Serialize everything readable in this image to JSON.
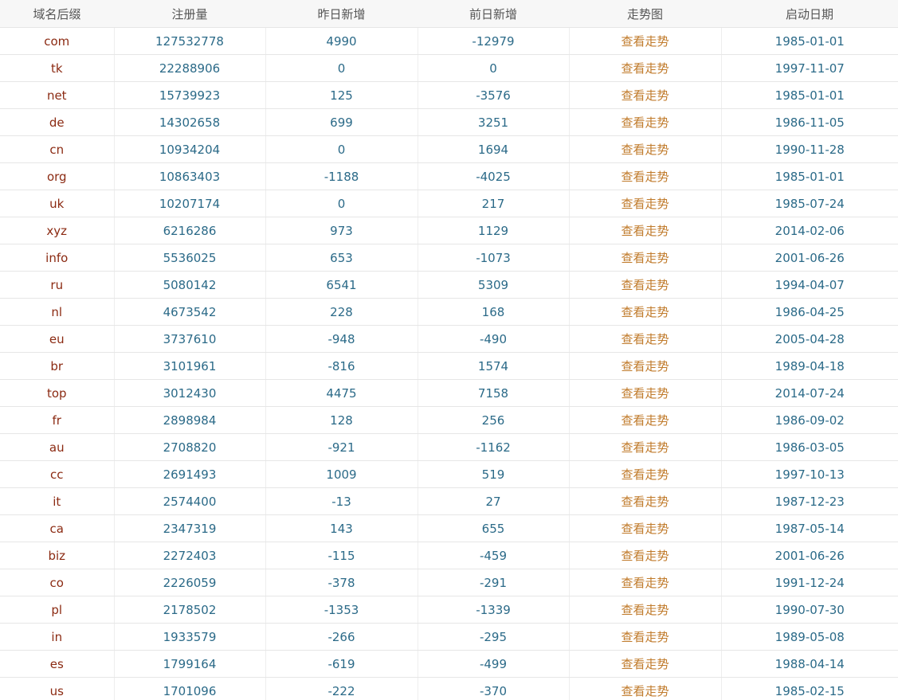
{
  "colors": {
    "suffix": "#8b2a12",
    "number": "#2b6a88",
    "link": "#c07a2a",
    "header_bg": "#f7f7f7"
  },
  "table": {
    "headers": [
      "域名后缀",
      "注册量",
      "昨日新增",
      "前日新增",
      "走势图",
      "启动日期"
    ],
    "rows": [
      [
        "com",
        "127532778",
        "4990",
        "-12979",
        "查看走势",
        "1985-01-01"
      ],
      [
        "tk",
        "22288906",
        "0",
        "0",
        "查看走势",
        "1997-11-07"
      ],
      [
        "net",
        "15739923",
        "125",
        "-3576",
        "查看走势",
        "1985-01-01"
      ],
      [
        "de",
        "14302658",
        "699",
        "3251",
        "查看走势",
        "1986-11-05"
      ],
      [
        "cn",
        "10934204",
        "0",
        "1694",
        "查看走势",
        "1990-11-28"
      ],
      [
        "org",
        "10863403",
        "-1188",
        "-4025",
        "查看走势",
        "1985-01-01"
      ],
      [
        "uk",
        "10207174",
        "0",
        "217",
        "查看走势",
        "1985-07-24"
      ],
      [
        "xyz",
        "6216286",
        "973",
        "1129",
        "查看走势",
        "2014-02-06"
      ],
      [
        "info",
        "5536025",
        "653",
        "-1073",
        "查看走势",
        "2001-06-26"
      ],
      [
        "ru",
        "5080142",
        "6541",
        "5309",
        "查看走势",
        "1994-04-07"
      ],
      [
        "nl",
        "4673542",
        "228",
        "168",
        "查看走势",
        "1986-04-25"
      ],
      [
        "eu",
        "3737610",
        "-948",
        "-490",
        "查看走势",
        "2005-04-28"
      ],
      [
        "br",
        "3101961",
        "-816",
        "1574",
        "查看走势",
        "1989-04-18"
      ],
      [
        "top",
        "3012430",
        "4475",
        "7158",
        "查看走势",
        "2014-07-24"
      ],
      [
        "fr",
        "2898984",
        "128",
        "256",
        "查看走势",
        "1986-09-02"
      ],
      [
        "au",
        "2708820",
        "-921",
        "-1162",
        "查看走势",
        "1986-03-05"
      ],
      [
        "cc",
        "2691493",
        "1009",
        "519",
        "查看走势",
        "1997-10-13"
      ],
      [
        "it",
        "2574400",
        "-13",
        "27",
        "查看走势",
        "1987-12-23"
      ],
      [
        "ca",
        "2347319",
        "143",
        "655",
        "查看走势",
        "1987-05-14"
      ],
      [
        "biz",
        "2272403",
        "-115",
        "-459",
        "查看走势",
        "2001-06-26"
      ],
      [
        "co",
        "2226059",
        "-378",
        "-291",
        "查看走势",
        "1991-12-24"
      ],
      [
        "pl",
        "2178502",
        "-1353",
        "-1339",
        "查看走势",
        "1990-07-30"
      ],
      [
        "in",
        "1933579",
        "-266",
        "-295",
        "查看走势",
        "1989-05-08"
      ],
      [
        "es",
        "1799164",
        "-619",
        "-499",
        "查看走势",
        "1988-04-14"
      ],
      [
        "us",
        "1701096",
        "-222",
        "-370",
        "查看走势",
        "1985-02-15"
      ]
    ]
  }
}
